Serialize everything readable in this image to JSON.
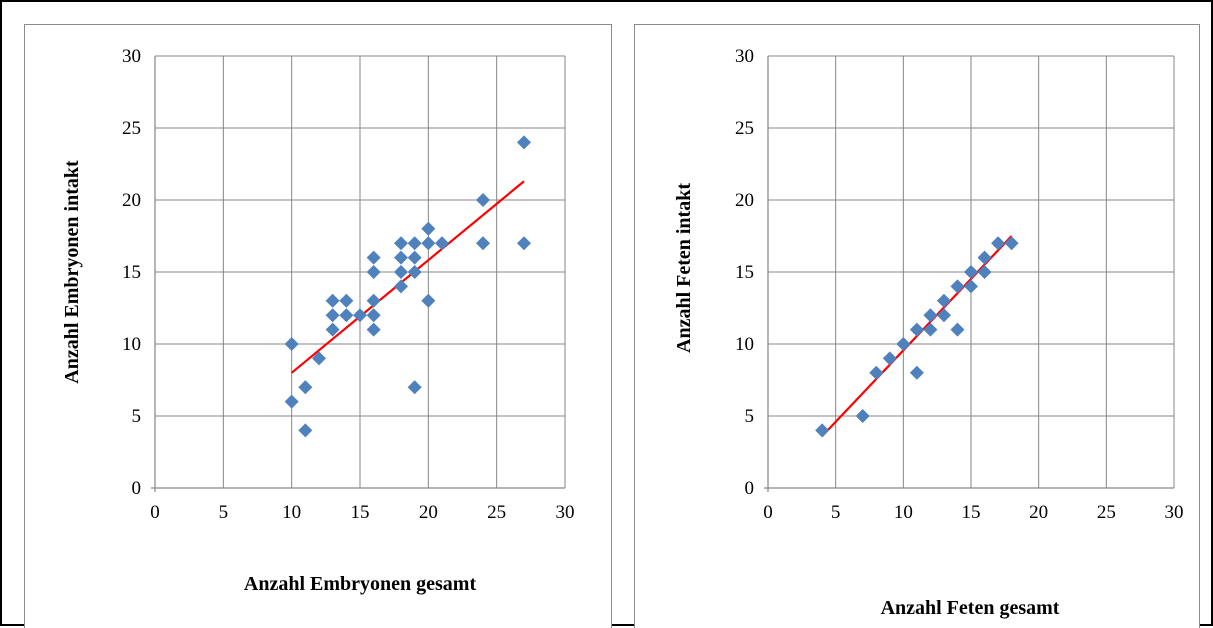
{
  "chart_data": [
    {
      "type": "scatter",
      "xlabel": "Anzahl Embryonen gesamt",
      "ylabel": "Anzahl Embryonen intakt",
      "xlim": [
        0,
        30
      ],
      "ylim": [
        0,
        30
      ],
      "xticks": [
        "0",
        "5",
        "10",
        "15",
        "20",
        "25",
        "30"
      ],
      "yticks": [
        "0",
        "5",
        "10",
        "15",
        "20",
        "25",
        "30"
      ],
      "grid": true,
      "marker_color": "#4f81bd",
      "trendline_color": "#ff0000",
      "points": [
        [
          10,
          10
        ],
        [
          10,
          6
        ],
        [
          11,
          7
        ],
        [
          11,
          4
        ],
        [
          12,
          9
        ],
        [
          13,
          13
        ],
        [
          13,
          12
        ],
        [
          13,
          11
        ],
        [
          14,
          13
        ],
        [
          14,
          12
        ],
        [
          15,
          12
        ],
        [
          16,
          16
        ],
        [
          16,
          15
        ],
        [
          16,
          13
        ],
        [
          16,
          12
        ],
        [
          16,
          11
        ],
        [
          18,
          17
        ],
        [
          18,
          16
        ],
        [
          18,
          15
        ],
        [
          18,
          14
        ],
        [
          19,
          17
        ],
        [
          19,
          16
        ],
        [
          19,
          15
        ],
        [
          19,
          7
        ],
        [
          20,
          18
        ],
        [
          20,
          17
        ],
        [
          20,
          13
        ],
        [
          21,
          17
        ],
        [
          24,
          20
        ],
        [
          24,
          17
        ],
        [
          27,
          24
        ],
        [
          27,
          17
        ]
      ],
      "trendline": [
        [
          10,
          8
        ],
        [
          27,
          21.3
        ]
      ]
    },
    {
      "type": "scatter",
      "xlabel": "Anzahl Feten gesamt",
      "ylabel": "Anzahl Feten intakt",
      "xlim": [
        0,
        30
      ],
      "ylim": [
        0,
        30
      ],
      "xticks": [
        "0",
        "5",
        "10",
        "15",
        "20",
        "25",
        "30"
      ],
      "yticks": [
        "0",
        "5",
        "10",
        "15",
        "20",
        "25",
        "30"
      ],
      "grid": true,
      "marker_color": "#4f81bd",
      "trendline_color": "#ff0000",
      "points": [
        [
          4,
          4
        ],
        [
          7,
          5
        ],
        [
          8,
          8
        ],
        [
          9,
          9
        ],
        [
          10,
          10
        ],
        [
          11,
          11
        ],
        [
          11,
          8
        ],
        [
          12,
          12
        ],
        [
          12,
          11
        ],
        [
          13,
          13
        ],
        [
          13,
          12
        ],
        [
          14,
          14
        ],
        [
          14,
          11
        ],
        [
          15,
          15
        ],
        [
          15,
          14
        ],
        [
          16,
          16
        ],
        [
          16,
          15
        ],
        [
          17,
          17
        ],
        [
          18,
          17
        ]
      ],
      "trendline": [
        [
          4,
          3.6
        ],
        [
          18,
          17.5
        ]
      ]
    }
  ]
}
